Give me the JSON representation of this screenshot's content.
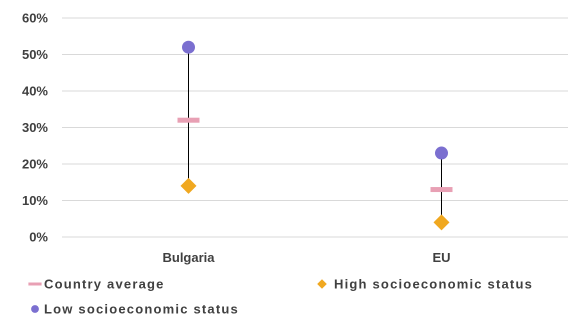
{
  "chart_data": {
    "type": "scatter",
    "categories": [
      "Bulgaria",
      "EU"
    ],
    "y_ticks": [
      "0%",
      "10%",
      "20%",
      "30%",
      "40%",
      "50%",
      "60%"
    ],
    "ylim": [
      0,
      60
    ],
    "grid": true,
    "legend_position": "bottom",
    "series": [
      {
        "key": "avg",
        "name": "Country average",
        "marker": "dash",
        "color": "#E8A0B4",
        "values": [
          32,
          13
        ]
      },
      {
        "key": "high",
        "name": "High socioeconomic status",
        "marker": "diamond",
        "color": "#F0A820",
        "values": [
          14,
          4
        ]
      },
      {
        "key": "low",
        "name": "Low socioeconomic status",
        "marker": "circle",
        "color": "#7B6FD0",
        "values": [
          52,
          23
        ]
      }
    ],
    "connector": {
      "color": "#000000",
      "from_series": "high",
      "to_series": "low"
    }
  }
}
